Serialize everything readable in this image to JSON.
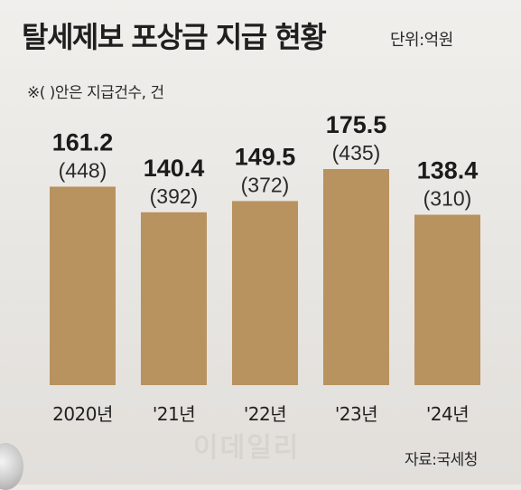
{
  "title": "탈세제보 포상금 지급 현황",
  "unit": "단위:억원",
  "note": "※(  )안은 지급건수, 건",
  "source": "자료:국세청",
  "watermark": "이데일리",
  "colors": {
    "bar": "#b8925f",
    "background": "#eceae6"
  },
  "chart_data": {
    "type": "bar",
    "categories": [
      "2020년",
      "'21년",
      "'22년",
      "'23년",
      "'24년"
    ],
    "values": [
      161.2,
      140.4,
      149.5,
      175.5,
      138.4
    ],
    "counts": [
      448,
      392,
      372,
      435,
      310
    ],
    "value_labels": [
      "161.2",
      "140.4",
      "149.5",
      "175.5",
      "138.4"
    ],
    "count_labels": [
      "(448)",
      "(392)",
      "(372)",
      "(435)",
      "(310)"
    ],
    "ylim": [
      0,
      175.5
    ],
    "grid": false,
    "title": "탈세제보 포상금 지급 현황",
    "xlabel": "",
    "ylabel": ""
  }
}
